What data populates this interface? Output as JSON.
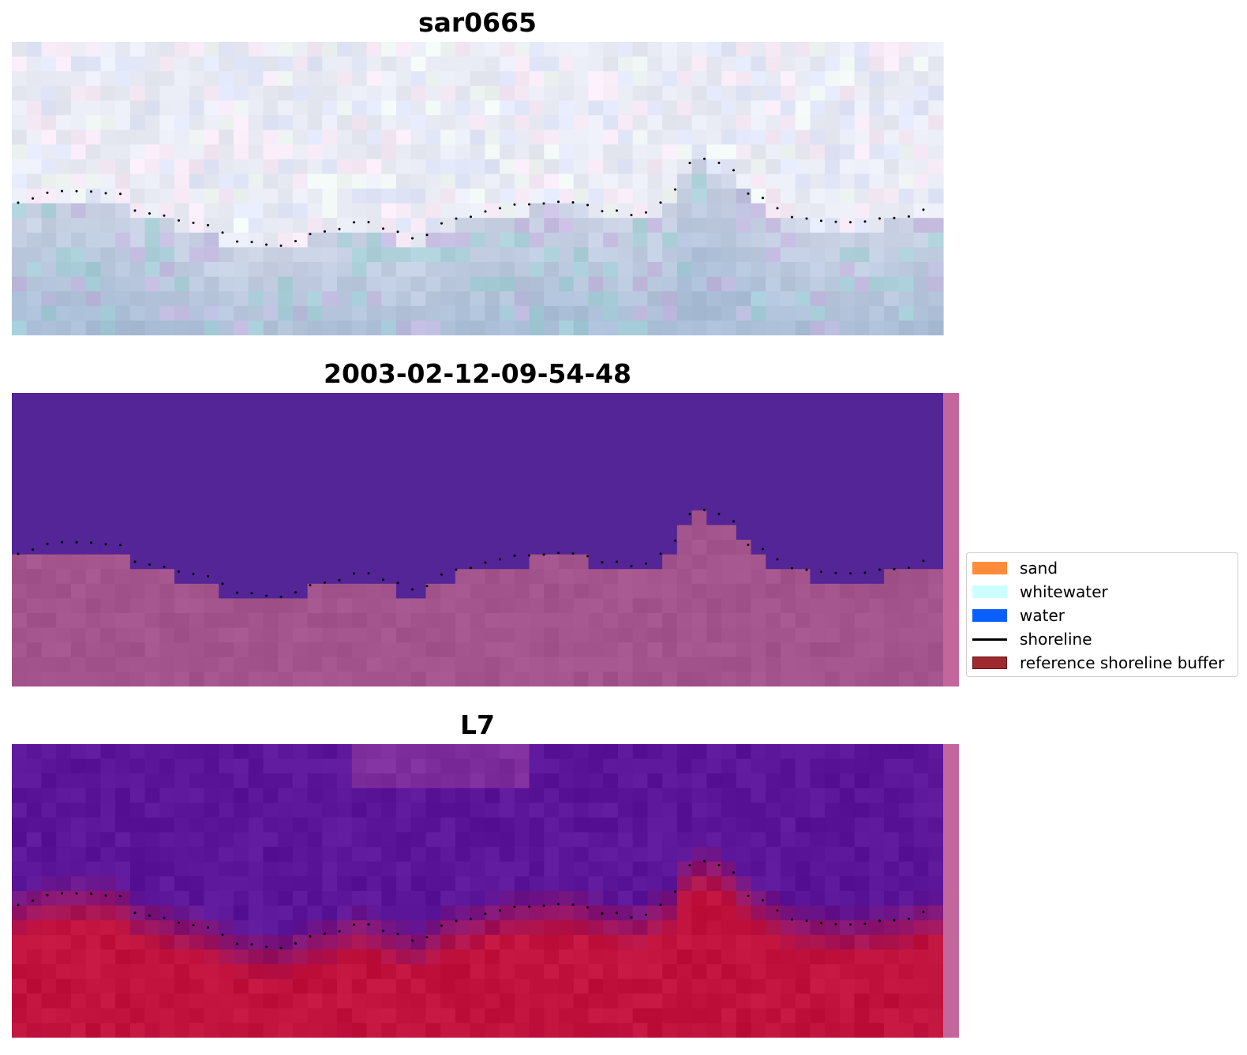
{
  "panels": [
    {
      "title": "sar0665",
      "kind": "rgb"
    },
    {
      "title": "2003-02-12-09-54-48",
      "kind": "classified"
    },
    {
      "title": "L7",
      "kind": "index"
    }
  ],
  "legend": {
    "items": [
      {
        "label": "sand",
        "type": "patch",
        "color": "#ff8c3a"
      },
      {
        "label": "whitewater",
        "type": "patch",
        "color": "#ccffff"
      },
      {
        "label": "water",
        "type": "patch",
        "color": "#0a5fff"
      },
      {
        "label": "shoreline",
        "type": "line",
        "color": "#000000"
      },
      {
        "label": "reference shoreline buffer",
        "type": "patch",
        "color": "#9e2a2f",
        "edge": "#6b0f14"
      }
    ]
  },
  "colors": {
    "classified_water": "#532596",
    "classified_land": "#a4548c",
    "buffer_strip": "#c2669c",
    "index_water": "#5a1599",
    "index_land": "#c0123c",
    "shoreline_dots": "#000000"
  }
}
